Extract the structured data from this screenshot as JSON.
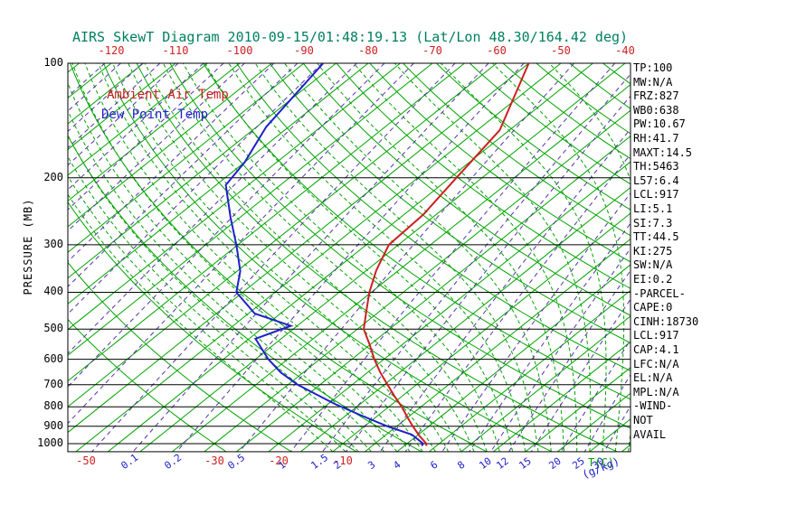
{
  "title": "AIRS SkewT Diagram 2010-09-15/01:48:19.13 (Lat/Lon 48.30/164.42 deg)",
  "legend": {
    "temp": "Ambient Air Temp",
    "dew": "Dew Point Temp"
  },
  "colors": {
    "title": "#008060",
    "temperature": "#cc2020",
    "dew_point": "#2020cc",
    "isotherm": "#00a400",
    "dry_adiabat": "#00a400",
    "moist_adiabat": "#00a400",
    "mixing_ratio": "#5534aa",
    "axis": "#000000",
    "mixing_label": "#2020cc",
    "temp_tick_label": "#cc2020",
    "unit_temp_label": "#00a000"
  },
  "axes": {
    "pressure_label": "PRESSURE (MB)",
    "pressure_ticks": [
      100,
      200,
      300,
      400,
      500,
      600,
      700,
      800,
      900,
      1000
    ],
    "top_temp_ticks": [
      -120,
      -110,
      -100,
      -90,
      -80,
      -70,
      -60,
      -50,
      -40
    ],
    "bottom_temp_ticks": [
      -50,
      -30,
      -20,
      -10
    ],
    "temp_unit_label": "T(C)",
    "mixing_unit_label": "(g/kg)",
    "mixing_ratio_labels": [
      "0.1",
      "0.2",
      "0.5",
      "1",
      "1.5",
      "2",
      "3",
      "4",
      "6",
      "8",
      "10",
      "12",
      "15",
      "20",
      "25",
      "30"
    ]
  },
  "stats_panel": {
    "items": [
      "TP:100",
      "MW:N/A",
      "FRZ:827",
      "WB0:638",
      "PW:10.67",
      "RH:41.7",
      "MAXT:14.5",
      "TH:5463",
      "L57:6.4",
      "LCL:917",
      "LI:5.1",
      "SI:7.3",
      "TT:44.5",
      "KI:275",
      "SW:N/A",
      "EI:0.2",
      "-PARCEL-",
      "CAPE:0",
      "CINH:18730",
      "LCL:917",
      "CAP:4.1",
      "LFC:N/A",
      "EL:N/A",
      "MPL:N/A",
      "-WIND-",
      "NOT",
      "AVAIL"
    ]
  },
  "chart_data": {
    "type": "line",
    "subtype": "skewt-log-p",
    "title": "AIRS SkewT Diagram 2010-09-15/01:48:19.13 (Lat/Lon 48.30/164.42 deg)",
    "y_axis": {
      "label": "PRESSURE (MB)",
      "scale": "log",
      "range_mb": [
        100,
        1050
      ],
      "ticks_mb": [
        100,
        200,
        300,
        400,
        500,
        600,
        700,
        800,
        900,
        1000
      ]
    },
    "x_axis": {
      "label": "T(C)",
      "top_ticks_c": [
        -120,
        -110,
        -100,
        -90,
        -80,
        -70,
        -60,
        -50,
        -40
      ],
      "bottom_ticks_c": [
        -50,
        -30,
        -20,
        -10
      ],
      "temp_range_at_1000mb_c": [
        -50,
        45
      ]
    },
    "series": [
      {
        "name": "Ambient Air Temp",
        "color": "#cc2020",
        "points_p_t": [
          [
            100,
            -55
          ],
          [
            150,
            -46.5
          ],
          [
            200,
            -44
          ],
          [
            250,
            -42
          ],
          [
            300,
            -41.5
          ],
          [
            350,
            -38.5
          ],
          [
            400,
            -35.3
          ],
          [
            450,
            -32
          ],
          [
            500,
            -29
          ],
          [
            550,
            -25
          ],
          [
            600,
            -21.5
          ],
          [
            650,
            -18
          ],
          [
            700,
            -14.5
          ],
          [
            750,
            -11.2
          ],
          [
            800,
            -8
          ],
          [
            850,
            -5.2
          ],
          [
            900,
            -2.5
          ],
          [
            950,
            0.2
          ],
          [
            1000,
            3
          ],
          [
            1013,
            3.4
          ]
        ]
      },
      {
        "name": "Dew Point Temp",
        "color": "#2020cc",
        "points_p_t": [
          [
            100,
            -87
          ],
          [
            118,
            -85.5
          ],
          [
            147,
            -83.5
          ],
          [
            182,
            -80
          ],
          [
            209,
            -78.5
          ],
          [
            254,
            -71.5
          ],
          [
            302,
            -65
          ],
          [
            352,
            -59.5
          ],
          [
            400,
            -56
          ],
          [
            455,
            -49
          ],
          [
            490,
            -41
          ],
          [
            530,
            -44
          ],
          [
            600,
            -38
          ],
          [
            650,
            -33.5
          ],
          [
            700,
            -28.5
          ],
          [
            786,
            -19
          ],
          [
            844,
            -12.5
          ],
          [
            900,
            -6.5
          ],
          [
            947,
            -1
          ],
          [
            1000,
            2.5
          ],
          [
            1013,
            2.7
          ]
        ]
      }
    ],
    "background_lines": {
      "isotherms_c": {
        "min": -160,
        "max": 45,
        "step": 5
      },
      "dry_adiabats_c": {
        "min": -30,
        "max": 190,
        "step": 10
      },
      "moist_adiabats_c": {
        "min": -10,
        "max": 36,
        "step": 2
      },
      "mixing_ratio_lines_gkg": [
        0.1,
        0.2,
        0.5,
        1,
        1.5,
        2,
        3,
        4,
        6,
        8,
        10,
        12,
        15,
        20,
        25,
        30
      ],
      "mixing_ratio_faint_lines_gkg": [
        1e-06,
        2e-06,
        5e-06,
        1e-05,
        2e-05,
        5e-05,
        0.0001,
        0.0002,
        0.0005,
        0.001,
        0.002,
        0.005,
        0.01,
        0.02,
        0.05
      ]
    }
  }
}
